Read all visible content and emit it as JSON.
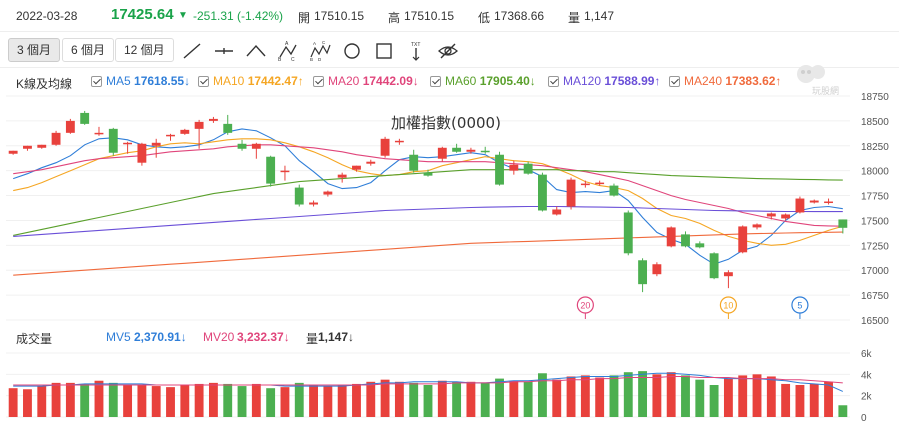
{
  "header": {
    "date": "2022-03-28",
    "price": "17425.64",
    "arrow": "▼",
    "change": "-251.31 (-1.42%)",
    "open_label": "開",
    "open_value": "17510.15",
    "high_label": "高",
    "high_value": "17510.15",
    "low_label": "低",
    "low_value": "17368.66",
    "vol_label": "量",
    "vol_value": "1,147"
  },
  "toolbar": {
    "ranges": [
      "3 個月",
      "6 個月",
      "12 個月"
    ],
    "tools": [
      "line-tool-icon",
      "horizontal-line-icon",
      "angle-tool-icon",
      "abc-pattern-icon",
      "abcde-pattern-icon",
      "circle-tool-icon",
      "rectangle-tool-icon",
      "text-tool-icon",
      "hide-drawings-icon"
    ]
  },
  "legend": {
    "title": "K線及均線",
    "items": [
      {
        "label": "MA5",
        "value": "17618.55↓",
        "color": "#2f7ed8"
      },
      {
        "label": "MA10",
        "value": "17442.47↑",
        "color": "#f5a623"
      },
      {
        "label": "MA20",
        "value": "17442.09↓",
        "color": "#e0457b"
      },
      {
        "label": "MA60",
        "value": "17905.40↓",
        "color": "#5aa02c"
      },
      {
        "label": "MA120",
        "value": "17588.99↑",
        "color": "#6a4fd8"
      },
      {
        "label": "MA240",
        "value": "17383.62↑",
        "color": "#f06a3c"
      }
    ]
  },
  "logo_text": "玩股網",
  "volume_legend": {
    "title": "成交量",
    "mv5_label": "MV5",
    "mv5_value": "2,370.91↓",
    "mv20_label": "MV20",
    "mv20_value": "3,232.37↓",
    "vol_label": "量",
    "vol_value": "1,147↓"
  },
  "chart_data": {
    "type": "candlestick",
    "title": "加權指數(0000)",
    "up_color": "#e8413c",
    "down_color": "#4caf50",
    "ylim": [
      16500,
      18750
    ],
    "yticks": [
      "18750",
      "18500",
      "18250",
      "18000",
      "17750",
      "17500",
      "17250",
      "17000",
      "16750",
      "16500"
    ],
    "markers": [
      {
        "label": "20",
        "index": 40,
        "color": "#e0457b"
      },
      {
        "label": "10",
        "index": 50,
        "color": "#f5a623"
      },
      {
        "label": "5",
        "index": 55,
        "color": "#2f7ed8"
      }
    ],
    "candles": [
      {
        "o": 18170,
        "h": 18200,
        "l": 18160,
        "c": 18200
      },
      {
        "o": 18220,
        "h": 18250,
        "l": 18200,
        "c": 18250
      },
      {
        "o": 18230,
        "h": 18260,
        "l": 18220,
        "c": 18260
      },
      {
        "o": 18260,
        "h": 18400,
        "l": 18250,
        "c": 18380
      },
      {
        "o": 18380,
        "h": 18520,
        "l": 18370,
        "c": 18500
      },
      {
        "o": 18580,
        "h": 18600,
        "l": 18460,
        "c": 18470
      },
      {
        "o": 18370,
        "h": 18440,
        "l": 18350,
        "c": 18380
      },
      {
        "o": 18420,
        "h": 18430,
        "l": 18150,
        "c": 18180
      },
      {
        "o": 18270,
        "h": 18290,
        "l": 18170,
        "c": 18280
      },
      {
        "o": 18080,
        "h": 18280,
        "l": 18050,
        "c": 18270
      },
      {
        "o": 18250,
        "h": 18320,
        "l": 18130,
        "c": 18280
      },
      {
        "o": 18350,
        "h": 18370,
        "l": 18300,
        "c": 18360
      },
      {
        "o": 18370,
        "h": 18420,
        "l": 18360,
        "c": 18410
      },
      {
        "o": 18420,
        "h": 18510,
        "l": 18220,
        "c": 18490
      },
      {
        "o": 18500,
        "h": 18540,
        "l": 18480,
        "c": 18520
      },
      {
        "o": 18470,
        "h": 18560,
        "l": 18360,
        "c": 18380
      },
      {
        "o": 18270,
        "h": 18310,
        "l": 18200,
        "c": 18220
      },
      {
        "o": 18220,
        "h": 18280,
        "l": 18120,
        "c": 18270
      },
      {
        "o": 18140,
        "h": 18150,
        "l": 17840,
        "c": 17870
      },
      {
        "o": 17990,
        "h": 18050,
        "l": 17900,
        "c": 18000
      },
      {
        "o": 17830,
        "h": 17860,
        "l": 17640,
        "c": 17660
      },
      {
        "o": 17660,
        "h": 17700,
        "l": 17640,
        "c": 17680
      },
      {
        "o": 17760,
        "h": 17800,
        "l": 17740,
        "c": 17790
      },
      {
        "o": 17930,
        "h": 17980,
        "l": 17880,
        "c": 17960
      },
      {
        "o": 18010,
        "h": 18050,
        "l": 17990,
        "c": 18050
      },
      {
        "o": 18070,
        "h": 18110,
        "l": 18050,
        "c": 18090
      },
      {
        "o": 18150,
        "h": 18340,
        "l": 18130,
        "c": 18320
      },
      {
        "o": 18290,
        "h": 18320,
        "l": 18260,
        "c": 18300
      },
      {
        "o": 18160,
        "h": 18210,
        "l": 17980,
        "c": 18000
      },
      {
        "o": 17980,
        "h": 18010,
        "l": 17940,
        "c": 17950
      },
      {
        "o": 18120,
        "h": 18240,
        "l": 18090,
        "c": 18230
      },
      {
        "o": 18230,
        "h": 18270,
        "l": 18180,
        "c": 18190
      },
      {
        "o": 18190,
        "h": 18230,
        "l": 18170,
        "c": 18210
      },
      {
        "o": 18200,
        "h": 18240,
        "l": 18170,
        "c": 18190
      },
      {
        "o": 18160,
        "h": 18190,
        "l": 17850,
        "c": 17860
      },
      {
        "o": 18000,
        "h": 18100,
        "l": 17960,
        "c": 18060
      },
      {
        "o": 18070,
        "h": 18090,
        "l": 17960,
        "c": 17970
      },
      {
        "o": 17960,
        "h": 17980,
        "l": 17590,
        "c": 17600
      },
      {
        "o": 17560,
        "h": 17640,
        "l": 17550,
        "c": 17610
      },
      {
        "o": 17640,
        "h": 17930,
        "l": 17610,
        "c": 17910
      },
      {
        "o": 17860,
        "h": 17900,
        "l": 17830,
        "c": 17870
      },
      {
        "o": 17870,
        "h": 17900,
        "l": 17850,
        "c": 17880
      },
      {
        "o": 17850,
        "h": 17870,
        "l": 17740,
        "c": 17750
      },
      {
        "o": 17580,
        "h": 17600,
        "l": 17150,
        "c": 17170
      },
      {
        "o": 17100,
        "h": 17120,
        "l": 16780,
        "c": 16860
      },
      {
        "o": 16960,
        "h": 17080,
        "l": 16940,
        "c": 17060
      },
      {
        "o": 17240,
        "h": 17440,
        "l": 17230,
        "c": 17430
      },
      {
        "o": 17360,
        "h": 17390,
        "l": 17230,
        "c": 17240
      },
      {
        "o": 17270,
        "h": 17290,
        "l": 17220,
        "c": 17230
      },
      {
        "o": 17170,
        "h": 17180,
        "l": 16910,
        "c": 16920
      },
      {
        "o": 16940,
        "h": 17000,
        "l": 16820,
        "c": 16980
      },
      {
        "o": 17180,
        "h": 17450,
        "l": 17170,
        "c": 17440
      },
      {
        "o": 17430,
        "h": 17470,
        "l": 17410,
        "c": 17460
      },
      {
        "o": 17540,
        "h": 17580,
        "l": 17510,
        "c": 17570
      },
      {
        "o": 17520,
        "h": 17570,
        "l": 17500,
        "c": 17560
      },
      {
        "o": 17580,
        "h": 17740,
        "l": 17570,
        "c": 17720
      },
      {
        "o": 17680,
        "h": 17710,
        "l": 17670,
        "c": 17700
      },
      {
        "o": 17680,
        "h": 17720,
        "l": 17660,
        "c": 17690
      },
      {
        "o": 17510,
        "h": 17510,
        "l": 17369,
        "c": 17426
      }
    ],
    "ma_series": [
      {
        "name": "MA5",
        "color": "#2f7ed8",
        "values": [
          17920,
          17970,
          18030,
          18080,
          18150,
          18260,
          18320,
          18330,
          18310,
          18260,
          18240,
          18230,
          18240,
          18260,
          18310,
          18390,
          18420,
          18400,
          18330,
          18250,
          18100,
          17990,
          17870,
          17820,
          17830,
          17880,
          18000,
          18110,
          18140,
          18130,
          18140,
          18160,
          18180,
          18160,
          18080,
          18020,
          18010,
          17940,
          17810,
          17780,
          17790,
          17780,
          17800,
          17700,
          17530,
          17380,
          17310,
          17260,
          17150,
          17060,
          17110,
          17200,
          17240,
          17350,
          17500,
          17600,
          17630,
          17640,
          17618
        ]
      },
      {
        "name": "MA10",
        "color": "#f5a623",
        "values": [
          17800,
          17830,
          17880,
          17940,
          18000,
          18060,
          18120,
          18150,
          18180,
          18200,
          18240,
          18270,
          18280,
          18270,
          18290,
          18310,
          18320,
          18320,
          18310,
          18280,
          18240,
          18190,
          18130,
          18060,
          18000,
          17970,
          17950,
          17960,
          17990,
          18000,
          18050,
          18080,
          18110,
          18140,
          18120,
          18100,
          18090,
          18070,
          18020,
          17960,
          17890,
          17850,
          17830,
          17800,
          17720,
          17620,
          17550,
          17520,
          17470,
          17400,
          17340,
          17300,
          17270,
          17250,
          17260,
          17300,
          17350,
          17400,
          17442
        ]
      },
      {
        "name": "MA20",
        "color": "#e0457b",
        "values": [
          17970,
          17990,
          18010,
          18040,
          18070,
          18100,
          18120,
          18130,
          18140,
          18150,
          18170,
          18190,
          18200,
          18210,
          18220,
          18240,
          18250,
          18260,
          18260,
          18250,
          18240,
          18230,
          18210,
          18190,
          18160,
          18140,
          18120,
          18110,
          18100,
          18090,
          18090,
          18090,
          18090,
          18090,
          18080,
          18070,
          18060,
          18050,
          18030,
          18010,
          17990,
          17960,
          17930,
          17900,
          17850,
          17800,
          17750,
          17710,
          17680,
          17650,
          17620,
          17580,
          17550,
          17520,
          17490,
          17470,
          17450,
          17445,
          17442
        ]
      },
      {
        "name": "MA60",
        "color": "#5aa02c",
        "values": [
          17350,
          17380,
          17410,
          17440,
          17470,
          17500,
          17530,
          17560,
          17590,
          17620,
          17650,
          17680,
          17710,
          17740,
          17770,
          17790,
          17810,
          17830,
          17850,
          17870,
          17890,
          17900,
          17910,
          17920,
          17930,
          17940,
          17950,
          17960,
          17970,
          17980,
          17990,
          18000,
          18010,
          18010,
          18010,
          18010,
          18010,
          18010,
          18010,
          18000,
          18000,
          17990,
          17990,
          17980,
          17970,
          17960,
          17950,
          17945,
          17940,
          17935,
          17930,
          17925,
          17920,
          17918,
          17915,
          17912,
          17910,
          17907,
          17905
        ]
      },
      {
        "name": "MA120",
        "color": "#6a4fd8",
        "values": [
          17340,
          17350,
          17360,
          17370,
          17380,
          17390,
          17400,
          17410,
          17420,
          17430,
          17440,
          17450,
          17460,
          17470,
          17480,
          17490,
          17500,
          17510,
          17520,
          17530,
          17540,
          17550,
          17560,
          17570,
          17580,
          17590,
          17600,
          17605,
          17610,
          17615,
          17620,
          17625,
          17630,
          17633,
          17636,
          17638,
          17640,
          17640,
          17640,
          17638,
          17636,
          17634,
          17632,
          17630,
          17625,
          17620,
          17615,
          17610,
          17605,
          17600,
          17598,
          17596,
          17594,
          17592,
          17590,
          17590,
          17589,
          17589,
          17589
        ]
      },
      {
        "name": "MA240",
        "color": "#f06a3c",
        "values": [
          16950,
          16960,
          16970,
          16980,
          16990,
          17000,
          17010,
          17020,
          17030,
          17040,
          17050,
          17060,
          17070,
          17080,
          17090,
          17100,
          17110,
          17120,
          17130,
          17140,
          17150,
          17160,
          17170,
          17180,
          17190,
          17200,
          17210,
          17220,
          17230,
          17240,
          17250,
          17260,
          17270,
          17275,
          17280,
          17285,
          17290,
          17295,
          17300,
          17305,
          17310,
          17315,
          17320,
          17325,
          17330,
          17335,
          17340,
          17345,
          17350,
          17355,
          17360,
          17365,
          17368,
          17371,
          17374,
          17377,
          17379,
          17381,
          17383
        ]
      }
    ],
    "volume": {
      "ylim": [
        0,
        6
      ],
      "yticks": [
        "6k",
        "4k",
        "2k",
        "0"
      ],
      "values": [
        2.7,
        2.6,
        2.9,
        3.2,
        3.2,
        3.1,
        3.4,
        3.2,
        3.0,
        3.0,
        2.9,
        2.8,
        3.0,
        3.1,
        3.2,
        3.1,
        2.9,
        3.1,
        2.7,
        2.8,
        3.2,
        3.0,
        2.9,
        3.0,
        3.1,
        3.3,
        3.5,
        3.3,
        3.2,
        3.0,
        3.4,
        3.3,
        3.3,
        3.2,
        3.6,
        3.4,
        3.3,
        4.1,
        3.5,
        3.8,
        3.9,
        3.7,
        3.9,
        4.2,
        4.3,
        4.0,
        4.2,
        3.9,
        3.5,
        3.0,
        3.6,
        3.9,
        4.0,
        3.8,
        3.1,
        3.0,
        3.1,
        3.3,
        1.1
      ],
      "mv5": [
        2.9,
        2.9,
        2.9,
        3.0,
        3.0,
        3.1,
        3.1,
        3.1,
        3.1,
        3.1,
        3.0,
        3.0,
        3.0,
        3.0,
        3.0,
        3.0,
        3.0,
        3.0,
        3.0,
        2.9,
        2.9,
        2.9,
        2.9,
        2.9,
        3.0,
        3.1,
        3.2,
        3.2,
        3.3,
        3.3,
        3.3,
        3.3,
        3.2,
        3.2,
        3.3,
        3.4,
        3.4,
        3.5,
        3.6,
        3.7,
        3.8,
        3.8,
        3.8,
        3.9,
        4.0,
        4.1,
        4.1,
        4.0,
        3.9,
        3.7,
        3.6,
        3.6,
        3.6,
        3.5,
        3.4,
        3.2,
        3.1,
        3.0,
        2.4
      ],
      "mv20": [
        3.0,
        3.0,
        3.0,
        3.0,
        3.0,
        3.0,
        3.0,
        3.0,
        3.0,
        3.0,
        3.0,
        3.0,
        3.0,
        3.0,
        3.0,
        3.0,
        3.0,
        3.0,
        3.0,
        3.0,
        3.0,
        3.0,
        3.0,
        3.0,
        3.0,
        3.0,
        3.1,
        3.1,
        3.1,
        3.1,
        3.1,
        3.2,
        3.2,
        3.2,
        3.2,
        3.3,
        3.3,
        3.4,
        3.4,
        3.5,
        3.5,
        3.6,
        3.6,
        3.7,
        3.7,
        3.7,
        3.8,
        3.8,
        3.7,
        3.7,
        3.7,
        3.6,
        3.6,
        3.6,
        3.5,
        3.5,
        3.4,
        3.3,
        3.2
      ]
    }
  }
}
